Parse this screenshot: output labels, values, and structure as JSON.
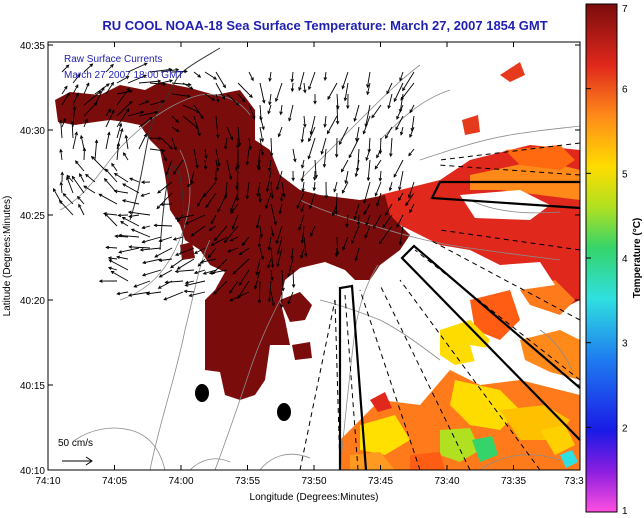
{
  "title": "RU COOL  NOAA-18  Sea Surface Temperature:  March 27, 2007 1854 GMT",
  "overlay": {
    "line1": "Raw Surface Currents",
    "line2": "March 27 2007 18:00 GMT"
  },
  "scale_label": "50 cm/s",
  "axes": {
    "xlabel": "Longitude (Degrees:Minutes)",
    "ylabel": "Latitude (Degrees:Minutes)",
    "x_ticks": [
      "74:10",
      "74:05",
      "74:00",
      "73:55",
      "73:50",
      "73:45",
      "73:40",
      "73:35",
      "73:3"
    ],
    "y_ticks": [
      "40:35",
      "40:30",
      "40:25",
      "40:20",
      "40:15",
      "40:10"
    ]
  },
  "colorbar": {
    "label": "Temperature (°C)",
    "ticks": [
      "1",
      "2",
      "3",
      "4",
      "5",
      "6",
      "7"
    ],
    "range": [
      1,
      7
    ]
  },
  "colors": {
    "land_hot": "#7a0c0c",
    "warm": "#e0281c",
    "orange": "#ff7a1a",
    "yellow": "#ffdc00",
    "lime": "#b0e020",
    "green": "#35d46a",
    "cyan": "#2fe0e0",
    "title": "#1f1fb0"
  }
}
